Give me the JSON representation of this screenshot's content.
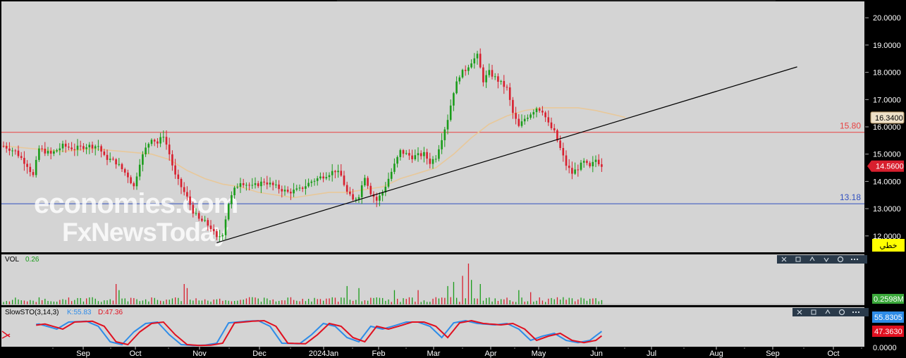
{
  "colors": {
    "panel_bg": "#d4d4d4",
    "frame": "#000000",
    "up": "#1a9c1a",
    "down": "#d81f2e",
    "ma": "#e8c89a",
    "trend": "#000000",
    "resistance": "#e84040",
    "support": "#3050c0",
    "k_line": "#2e8ce8",
    "d_line": "#e01020"
  },
  "price_axis": {
    "ticks": [
      "20.0000",
      "19.0000",
      "18.0000",
      "17.0000",
      "16.0000",
      "15.0000",
      "14.0000",
      "13.0000",
      "12.0000"
    ],
    "last_price": "14.5600",
    "ma_value": "16.3400",
    "badge": "خطي"
  },
  "time_axis": {
    "labels": [
      "Sep",
      "Oct",
      "Nov",
      "Dec",
      "2024Jan",
      "Feb",
      "Mar",
      "Apr",
      "May",
      "Jun",
      "Jul",
      "Aug",
      "Sep",
      "Oct"
    ]
  },
  "levels": {
    "resistance_label": "15.80",
    "support_label": "13.18"
  },
  "watermark": {
    "line1": "economies.com",
    "line2": "FxNewsToday"
  },
  "volume_panel": {
    "label": "VOL",
    "value": "0.26",
    "axis_value": "0.2598M",
    "toolbar_icons": [
      "close-icon",
      "window-icon",
      "up-icon",
      "down-icon",
      "settings-icon",
      "more-icon"
    ]
  },
  "stoch_panel": {
    "label": "SlowSTO(3,14,3)",
    "k_label": "K:55.83",
    "d_label": "D:47.36",
    "k_axis": "55.8305",
    "d_axis": "47.3630",
    "zero_axis": "0.0000",
    "toolbar_icons": [
      "close-icon",
      "window-icon",
      "up-icon",
      "settings-icon",
      "more-icon"
    ]
  },
  "chart_data": {
    "type": "candlestick",
    "ylim": [
      11.4,
      20.6
    ],
    "months": [
      "Sep",
      "Oct",
      "Nov",
      "Dec",
      "2024Jan",
      "Feb",
      "Mar",
      "Apr",
      "May",
      "Jun",
      "Jul",
      "Aug",
      "Sep",
      "Oct"
    ],
    "anchors": [
      [
        0,
        15.3
      ],
      [
        4,
        15.1
      ],
      [
        8,
        14.6
      ],
      [
        10,
        14.2
      ],
      [
        12,
        15.2
      ],
      [
        16,
        15.0
      ],
      [
        20,
        15.3
      ],
      [
        24,
        15.2
      ],
      [
        28,
        15.3
      ],
      [
        32,
        15.3
      ],
      [
        34,
        14.9
      ],
      [
        38,
        14.7
      ],
      [
        42,
        14.2
      ],
      [
        44,
        13.8
      ],
      [
        46,
        14.7
      ],
      [
        48,
        15.2
      ],
      [
        50,
        15.6
      ],
      [
        52,
        15.4
      ],
      [
        54,
        15.7
      ],
      [
        56,
        15.0
      ],
      [
        58,
        14.2
      ],
      [
        60,
        13.8
      ],
      [
        62,
        13.4
      ],
      [
        64,
        12.9
      ],
      [
        66,
        12.6
      ],
      [
        68,
        12.5
      ],
      [
        70,
        12.3
      ],
      [
        72,
        11.9
      ],
      [
        74,
        12.1
      ],
      [
        76,
        13.2
      ],
      [
        78,
        13.7
      ],
      [
        80,
        14.0
      ],
      [
        84,
        13.8
      ],
      [
        88,
        14.0
      ],
      [
        92,
        13.8
      ],
      [
        96,
        13.6
      ],
      [
        100,
        13.7
      ],
      [
        104,
        14.0
      ],
      [
        108,
        14.2
      ],
      [
        112,
        14.4
      ],
      [
        114,
        14.2
      ],
      [
        116,
        13.6
      ],
      [
        118,
        13.3
      ],
      [
        120,
        13.5
      ],
      [
        122,
        14.2
      ],
      [
        124,
        13.6
      ],
      [
        126,
        13.3
      ],
      [
        128,
        13.6
      ],
      [
        130,
        14.1
      ],
      [
        132,
        14.6
      ],
      [
        134,
        15.1
      ],
      [
        138,
        14.9
      ],
      [
        142,
        15.0
      ],
      [
        144,
        14.7
      ],
      [
        146,
        14.9
      ],
      [
        148,
        15.6
      ],
      [
        150,
        16.3
      ],
      [
        152,
        17.3
      ],
      [
        154,
        17.9
      ],
      [
        156,
        18.1
      ],
      [
        158,
        18.4
      ],
      [
        160,
        18.6
      ],
      [
        162,
        17.7
      ],
      [
        164,
        18.0
      ],
      [
        166,
        17.8
      ],
      [
        168,
        17.6
      ],
      [
        170,
        17.4
      ],
      [
        172,
        16.5
      ],
      [
        174,
        16.0
      ],
      [
        176,
        16.3
      ],
      [
        178,
        16.5
      ],
      [
        180,
        16.7
      ],
      [
        182,
        16.6
      ],
      [
        184,
        16.1
      ],
      [
        186,
        15.8
      ],
      [
        188,
        15.2
      ],
      [
        190,
        14.6
      ],
      [
        192,
        14.3
      ],
      [
        194,
        14.5
      ],
      [
        196,
        14.7
      ],
      [
        198,
        14.5
      ],
      [
        200,
        14.8
      ],
      [
        202,
        14.6
      ]
    ],
    "volume_spikes": [
      [
        38,
        0.5
      ],
      [
        39,
        0.35
      ],
      [
        61,
        0.5
      ],
      [
        62,
        0.4
      ],
      [
        116,
        0.45
      ],
      [
        120,
        0.4
      ],
      [
        132,
        0.35
      ],
      [
        140,
        0.35
      ],
      [
        150,
        0.45
      ],
      [
        152,
        0.55
      ],
      [
        155,
        0.7
      ],
      [
        157,
        1.0
      ],
      [
        158,
        0.6
      ],
      [
        161,
        0.5
      ],
      [
        174,
        0.35
      ],
      [
        178,
        0.3
      ]
    ],
    "stoch_points": [
      [
        0,
        45
      ],
      [
        6,
        70
      ],
      [
        12,
        78
      ],
      [
        18,
        60
      ],
      [
        22,
        85
      ],
      [
        28,
        88
      ],
      [
        32,
        70
      ],
      [
        36,
        15
      ],
      [
        40,
        5
      ],
      [
        44,
        50
      ],
      [
        48,
        80
      ],
      [
        52,
        85
      ],
      [
        56,
        40
      ],
      [
        60,
        5
      ],
      [
        64,
        2
      ],
      [
        68,
        3
      ],
      [
        72,
        10
      ],
      [
        76,
        82
      ],
      [
        82,
        88
      ],
      [
        86,
        90
      ],
      [
        90,
        70
      ],
      [
        94,
        10
      ],
      [
        100,
        8
      ],
      [
        104,
        40
      ],
      [
        108,
        80
      ],
      [
        112,
        70
      ],
      [
        116,
        30
      ],
      [
        120,
        15
      ],
      [
        124,
        70
      ],
      [
        128,
        60
      ],
      [
        132,
        72
      ],
      [
        136,
        85
      ],
      [
        140,
        85
      ],
      [
        144,
        70
      ],
      [
        148,
        30
      ],
      [
        152,
        82
      ],
      [
        156,
        90
      ],
      [
        160,
        80
      ],
      [
        166,
        75
      ],
      [
        170,
        80
      ],
      [
        174,
        60
      ],
      [
        178,
        20
      ],
      [
        182,
        35
      ],
      [
        186,
        45
      ],
      [
        190,
        20
      ],
      [
        194,
        12
      ],
      [
        198,
        20
      ],
      [
        202,
        52
      ]
    ],
    "ma_points": [
      [
        0,
        15.3
      ],
      [
        10,
        15.2
      ],
      [
        20,
        15.1
      ],
      [
        30,
        15.2
      ],
      [
        40,
        15.1
      ],
      [
        50,
        15.0
      ],
      [
        56,
        14.8
      ],
      [
        62,
        14.4
      ],
      [
        68,
        14.1
      ],
      [
        74,
        13.9
      ],
      [
        80,
        13.8
      ],
      [
        86,
        13.6
      ],
      [
        92,
        13.5
      ],
      [
        98,
        13.4
      ],
      [
        104,
        13.5
      ],
      [
        110,
        13.6
      ],
      [
        116,
        13.6
      ],
      [
        122,
        13.7
      ],
      [
        128,
        13.8
      ],
      [
        134,
        14.1
      ],
      [
        140,
        14.3
      ],
      [
        146,
        14.5
      ],
      [
        152,
        15.0
      ],
      [
        158,
        15.6
      ],
      [
        164,
        16.1
      ],
      [
        170,
        16.4
      ],
      [
        176,
        16.6
      ],
      [
        182,
        16.7
      ],
      [
        188,
        16.7
      ],
      [
        194,
        16.7
      ],
      [
        200,
        16.6
      ],
      [
        204,
        16.5
      ],
      [
        208,
        16.4
      ],
      [
        210,
        16.34
      ]
    ],
    "trendline": {
      "start": [
        72,
        11.75
      ],
      "end": [
        268,
        18.2
      ]
    },
    "resistance": 15.8,
    "support": 13.18
  }
}
